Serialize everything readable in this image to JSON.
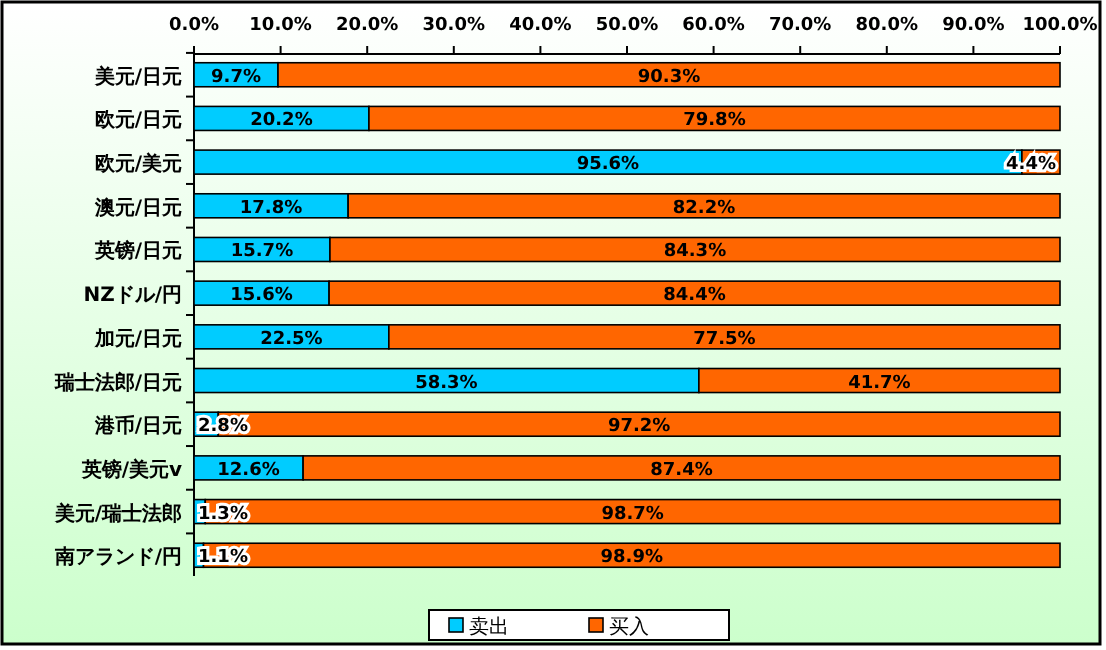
{
  "chart_data": {
    "type": "bar",
    "orientation": "horizontal",
    "stacked": true,
    "categories": [
      "美元/日元",
      "欧元/日元",
      "欧元/美元",
      "澳元/日元",
      "英镑/日元",
      "NZドル/円",
      "加元/日元",
      "瑞士法郎/日元",
      "港币/日元",
      "英镑/美元v",
      "美元/瑞士法郎",
      "南アランド/円"
    ],
    "series": [
      {
        "name": "卖出",
        "color": "#00ccff",
        "values": [
          9.7,
          20.2,
          95.6,
          17.8,
          15.7,
          15.6,
          22.5,
          58.3,
          2.8,
          12.6,
          1.3,
          1.1
        ],
        "value_labels": [
          "9.7%",
          "20.2%",
          "95.6%",
          "17.8%",
          "15.7%",
          "15.6%",
          "22.5%",
          "58.3%",
          "2.8%",
          "12.6%",
          "1.3%",
          "1.1%"
        ]
      },
      {
        "name": "买入",
        "color": "#ff6600",
        "values": [
          90.3,
          79.8,
          4.4,
          82.2,
          84.3,
          84.4,
          77.5,
          41.7,
          97.2,
          87.4,
          98.7,
          98.9
        ],
        "value_labels": [
          "90.3%",
          "79.8%",
          "4.4%",
          "82.2%",
          "84.3%",
          "84.4%",
          "77.5%",
          "41.7%",
          "97.2%",
          "87.4%",
          "98.7%",
          "98.9%"
        ]
      }
    ],
    "xlim": [
      0,
      100
    ],
    "xticks": [
      {
        "value": 0,
        "label": "0.0%"
      },
      {
        "value": 10,
        "label": "10.0%"
      },
      {
        "value": 20,
        "label": "20.0%"
      },
      {
        "value": 30,
        "label": "30.0%"
      },
      {
        "value": 40,
        "label": "40.0%"
      },
      {
        "value": 50,
        "label": "50.0%"
      },
      {
        "value": 60,
        "label": "60.0%"
      },
      {
        "value": 70,
        "label": "70.0%"
      },
      {
        "value": 80,
        "label": "80.0%"
      },
      {
        "value": 90,
        "label": "90.0%"
      },
      {
        "value": 100,
        "label": "100.0%"
      }
    ],
    "legend": "bottom"
  }
}
